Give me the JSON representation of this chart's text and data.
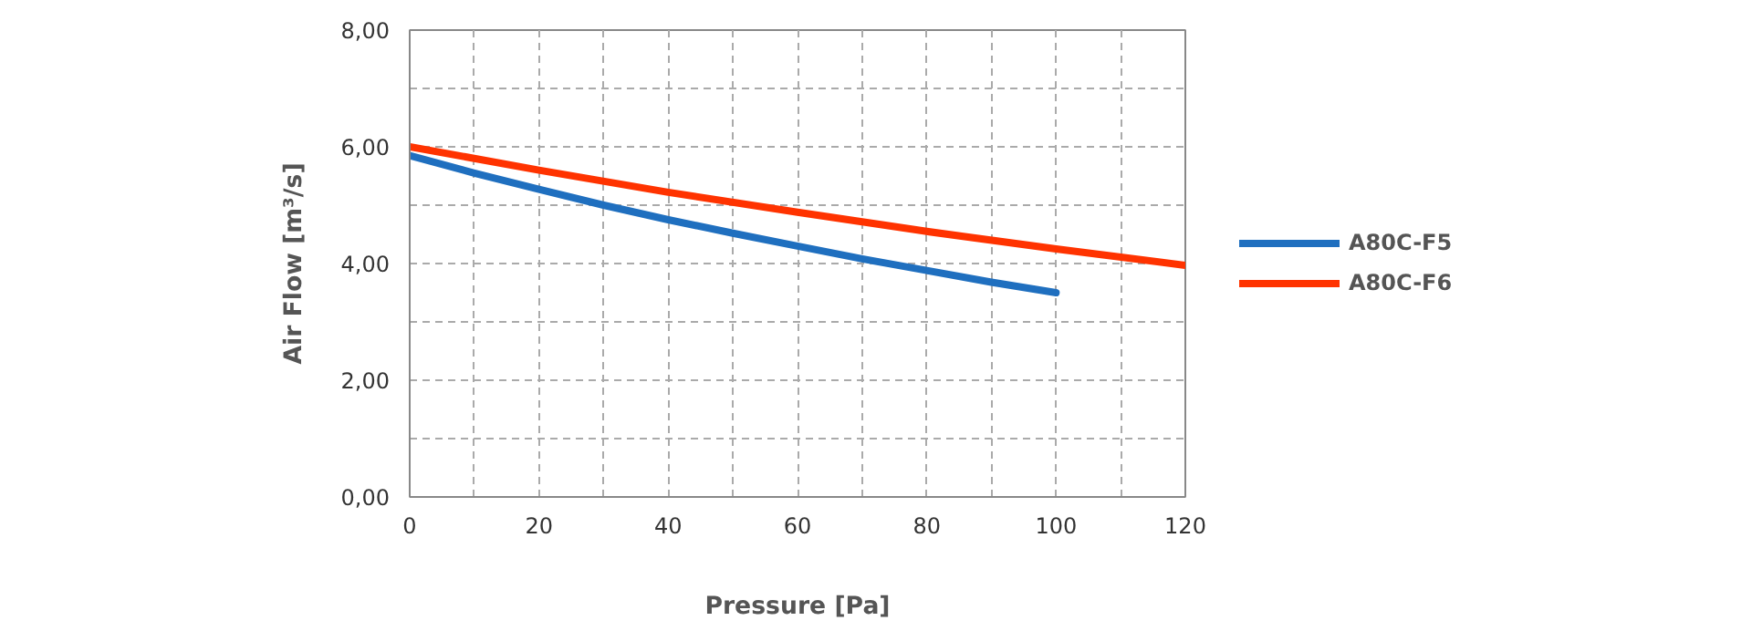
{
  "chart_data": {
    "type": "line",
    "xlabel": "Pressure [Pa]",
    "ylabel": "Air Flow [m³/s]",
    "xlim": [
      0,
      120
    ],
    "ylim": [
      0,
      8
    ],
    "xticks": [
      0,
      {
        "value": 10,
        "label": null
      },
      20,
      {
        "value": 30,
        "label": null
      },
      40,
      {
        "value": 50,
        "label": null
      },
      60,
      {
        "value": 70,
        "label": null
      },
      80,
      {
        "value": 90,
        "label": null
      },
      100,
      {
        "value": 110,
        "label": null
      },
      120
    ],
    "yticks": [
      {
        "value": 0,
        "label": "0,00"
      },
      {
        "value": 1,
        "label": null
      },
      {
        "value": 2,
        "label": "2,00"
      },
      {
        "value": 3,
        "label": null
      },
      {
        "value": 4,
        "label": "4,00"
      },
      {
        "value": 5,
        "label": null
      },
      {
        "value": 6,
        "label": "6,00"
      },
      {
        "value": 7,
        "label": null
      },
      {
        "value": 8,
        "label": "8,00"
      }
    ],
    "grid": true,
    "legend": "right",
    "line_style": "solid",
    "marker": "none",
    "series": [
      {
        "name": "A80C-F5",
        "color": "#1f6fbf",
        "x": [
          0,
          10,
          20,
          30,
          40,
          50,
          60,
          70,
          80,
          90,
          100
        ],
        "values": [
          5.85,
          5.55,
          5.27,
          5.0,
          4.75,
          4.52,
          4.3,
          4.08,
          3.88,
          3.68,
          3.5
        ]
      },
      {
        "name": "A80C-F6",
        "color": "#ff3300",
        "x": [
          0,
          20,
          40,
          60,
          80,
          100,
          120
        ],
        "values": [
          6.0,
          5.6,
          5.22,
          4.88,
          4.55,
          4.25,
          3.97
        ]
      }
    ]
  }
}
